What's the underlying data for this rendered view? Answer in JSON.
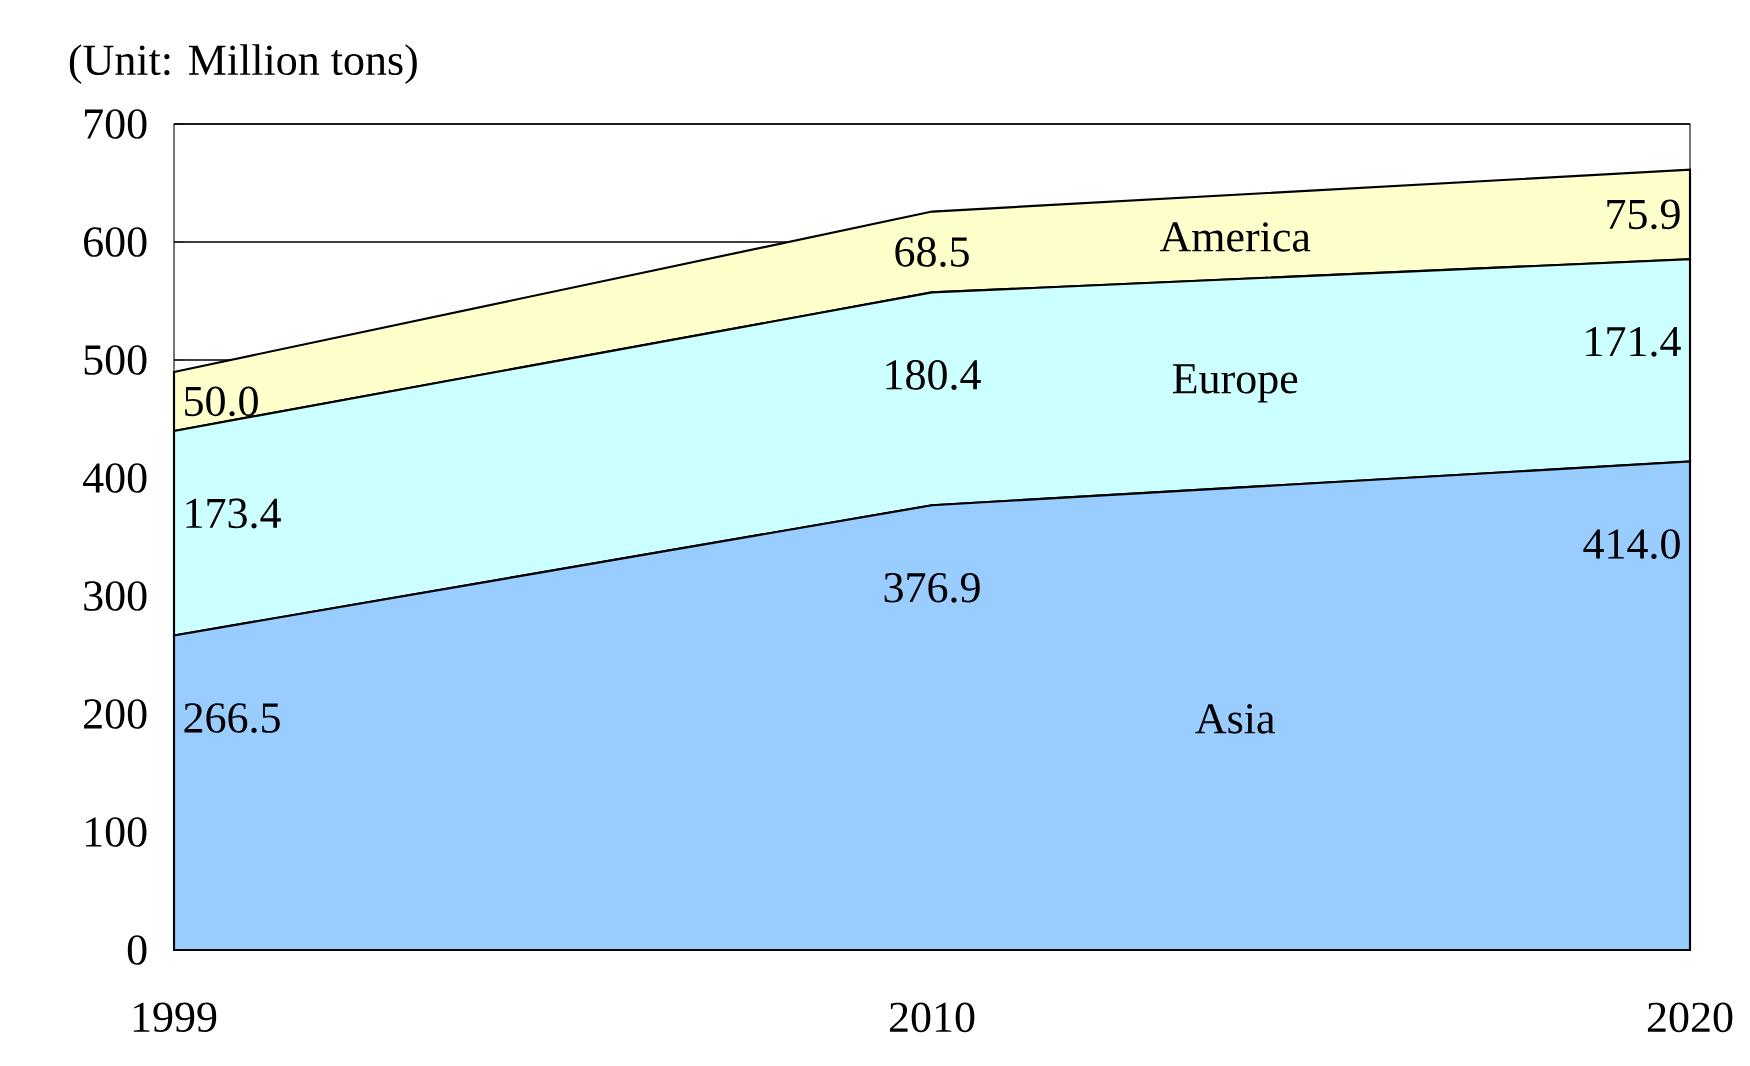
{
  "chart_data": {
    "type": "area",
    "stacked": true,
    "ylabel": "(Unit: Million tons)",
    "categories": [
      "1999",
      "2010",
      "2020"
    ],
    "series": [
      {
        "name": "Asia",
        "color": "#99ccff",
        "values": [
          266.5,
          376.9,
          414.0
        ],
        "value_labels": [
          "266.5",
          "376.9",
          "414.0"
        ]
      },
      {
        "name": "Europe",
        "color": "#ccffff",
        "values": [
          173.4,
          180.4,
          171.4
        ],
        "value_labels": [
          "173.4",
          "180.4",
          "171.4"
        ]
      },
      {
        "name": "America",
        "color": "#ffffcc",
        "values": [
          50.0,
          68.5,
          75.9
        ],
        "value_labels": [
          "50.0",
          "68.5",
          "75.9"
        ]
      }
    ],
    "ylim": [
      0,
      700
    ],
    "yticks": [
      0,
      100,
      200,
      300,
      400,
      500,
      600,
      700
    ],
    "grid": "y"
  }
}
